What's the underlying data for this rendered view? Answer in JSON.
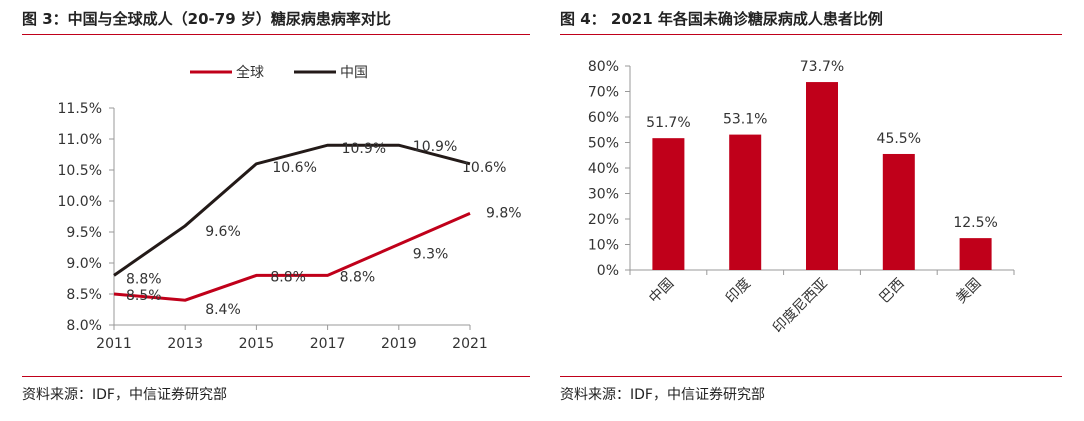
{
  "left": {
    "title": "图 3：中国与全球成人（20-79 岁）糖尿病患病率对比",
    "source": "资料来源：IDF，中信证券研究部"
  },
  "right": {
    "title": "图 4：  2021 年各国未确诊糖尿病成人患者比例",
    "source": "资料来源：IDF，中信证券研究部"
  },
  "colors": {
    "red": "#c0001a",
    "black": "#231a18",
    "rule": "#c0001a"
  },
  "chart_data": [
    {
      "type": "line",
      "x": [
        "2011",
        "2013",
        "2015",
        "2017",
        "2019",
        "2021"
      ],
      "ylim": [
        8.0,
        11.5
      ],
      "yticks": [
        "8.0%",
        "8.5%",
        "9.0%",
        "9.5%",
        "10.0%",
        "10.5%",
        "11.0%",
        "11.5%"
      ],
      "legend_position": "top",
      "series": [
        {
          "name": "全球",
          "color": "#c0001a",
          "values": [
            8.5,
            8.4,
            8.8,
            8.8,
            9.3,
            9.8
          ],
          "labels": [
            "8.5%",
            "8.4%",
            "8.8%",
            "8.8%",
            "9.3%",
            "9.8%"
          ]
        },
        {
          "name": "中国",
          "color": "#231a18",
          "values": [
            8.8,
            9.6,
            10.6,
            10.9,
            10.9,
            10.6
          ],
          "labels": [
            "8.8%",
            "9.6%",
            "10.6%",
            "10.9%",
            "10.9%",
            "10.6%"
          ]
        }
      ]
    },
    {
      "type": "bar",
      "categories": [
        "中国",
        "印度",
        "印度尼西亚",
        "巴西",
        "美国"
      ],
      "values": [
        51.7,
        53.1,
        73.7,
        45.5,
        12.5
      ],
      "labels": [
        "51.7%",
        "53.1%",
        "73.7%",
        "45.5%",
        "12.5%"
      ],
      "ylim": [
        0,
        80
      ],
      "yticks": [
        "0%",
        "10%",
        "20%",
        "30%",
        "40%",
        "50%",
        "60%",
        "70%",
        "80%"
      ],
      "color": "#c0001a"
    }
  ]
}
